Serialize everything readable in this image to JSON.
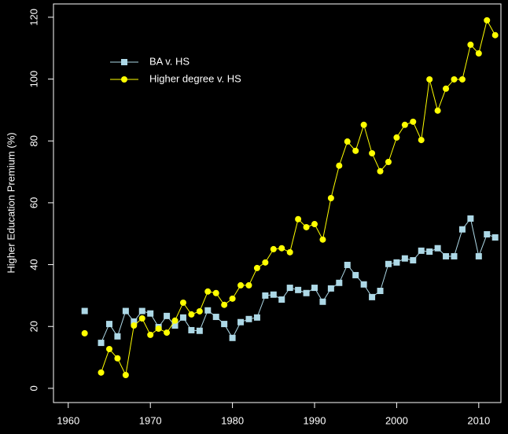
{
  "chart_data": {
    "type": "line",
    "y_label": "Higher Education Premium (%)",
    "x": [
      1962,
      1963,
      1964,
      1965,
      1966,
      1967,
      1968,
      1969,
      1970,
      1971,
      1972,
      1973,
      1974,
      1975,
      1976,
      1977,
      1978,
      1979,
      1980,
      1981,
      1982,
      1983,
      1984,
      1985,
      1986,
      1987,
      1988,
      1989,
      1990,
      1991,
      1992,
      1993,
      1994,
      1995,
      1996,
      1997,
      1998,
      1999,
      2000,
      2001,
      2002,
      2003,
      2004,
      2005,
      2006,
      2007,
      2008,
      2009,
      2010,
      2011,
      2012
    ],
    "series": [
      {
        "name": "BA v. HS",
        "color": "#add8e6",
        "marker": "square",
        "values": [
          25,
          null,
          14.7,
          20.8,
          16.8,
          25,
          21.6,
          25,
          24.2,
          19.8,
          23.4,
          20.3,
          22.9,
          18.8,
          18.6,
          25.2,
          23.1,
          20.8,
          16.3,
          21.4,
          22.4,
          22.9,
          30,
          30.3,
          28.7,
          32.5,
          31.8,
          30.8,
          32.5,
          28,
          32.3,
          34.1,
          39.9,
          36.6,
          33.6,
          29.5,
          31.5,
          40.2,
          40.7,
          42,
          41.4,
          44.5,
          44.2,
          45.3,
          42.7,
          42.7,
          51.4,
          54.9,
          42.7,
          49.8,
          48.8
        ]
      },
      {
        "name": "Higher degree v. HS",
        "color": "#ffff00",
        "marker": "circle",
        "values": [
          17.8,
          null,
          5.1,
          12.7,
          9.7,
          4.3,
          20.3,
          22.6,
          17.3,
          19.3,
          18,
          21.9,
          27.7,
          23.9,
          24.9,
          31.3,
          30.8,
          27,
          29,
          33.3,
          33.3,
          38.9,
          40.7,
          45,
          45.3,
          44,
          54.7,
          52.1,
          53.1,
          48.1,
          61.5,
          72,
          79.8,
          76.8,
          85.2,
          76,
          70.2,
          73.2,
          81.1,
          85.2,
          86.2,
          80.3,
          99.9,
          89.8,
          96.9,
          99.9,
          99.9,
          111.1,
          108.3,
          119,
          114.2
        ]
      }
    ],
    "xlim": [
      1958.2,
      2012.7
    ],
    "ylim": [
      -4.6,
      124.3
    ],
    "xticks": [
      1960,
      1970,
      1980,
      1990,
      2000,
      2010
    ],
    "yticks": [
      0,
      20,
      40,
      60,
      80,
      100,
      120
    ],
    "legend": "top-left"
  }
}
